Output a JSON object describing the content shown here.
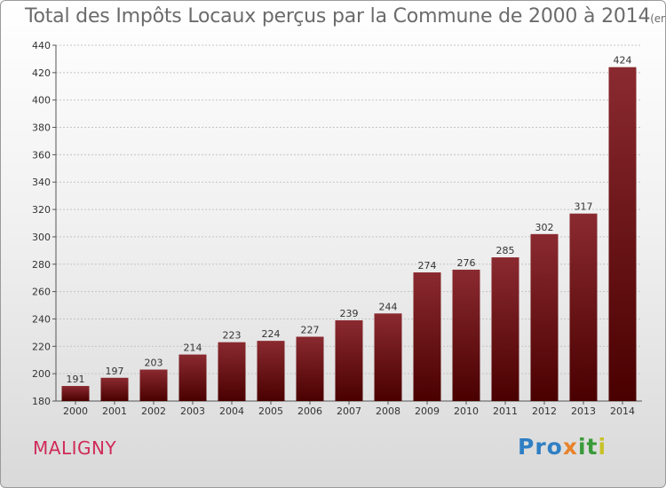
{
  "chart_data": {
    "type": "bar",
    "title": "Total des Impôts Locaux perçus par la Commune de 2000 à 2014",
    "subtitle": "(en milliers d'€)",
    "categories": [
      "2000",
      "2001",
      "2002",
      "2003",
      "2004",
      "2005",
      "2006",
      "2007",
      "2008",
      "2009",
      "2010",
      "2011",
      "2012",
      "2013",
      "2014"
    ],
    "values": [
      191,
      197,
      203,
      214,
      223,
      224,
      227,
      239,
      244,
      274,
      276,
      285,
      302,
      317,
      424
    ],
    "ylim": [
      180,
      440
    ],
    "yticks": [
      180,
      200,
      220,
      240,
      260,
      280,
      300,
      320,
      340,
      360,
      380,
      400,
      420,
      440
    ],
    "grid": true,
    "xlabel": "",
    "ylabel": ""
  },
  "commune": "MALIGNY",
  "logo": {
    "p1": "Pro",
    "p2": "x",
    "p3": "it",
    "p4": "i"
  },
  "colors": {
    "bar_top": "#8a2a30",
    "bar_bottom": "#4a0000",
    "commune": "#cf2b58"
  }
}
